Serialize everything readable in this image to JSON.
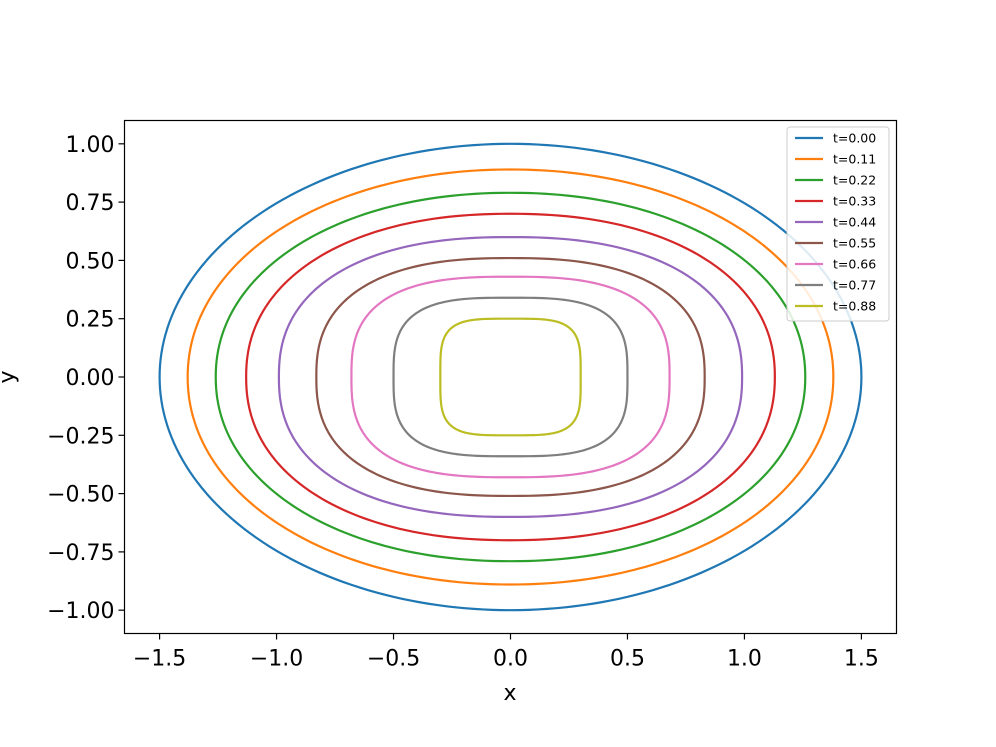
{
  "chart_data": {
    "type": "line",
    "title": "",
    "xlabel": "x",
    "ylabel": "y",
    "xlim": [
      -1.65,
      1.65
    ],
    "ylim": [
      -1.1,
      1.1
    ],
    "xticks": [
      -1.5,
      -1.0,
      -0.5,
      0.0,
      0.5,
      1.0,
      1.5
    ],
    "xtick_labels": [
      "−1.5",
      "−1.0",
      "−0.5",
      "0.0",
      "0.5",
      "1.0",
      "1.5"
    ],
    "yticks": [
      1.0,
      0.75,
      0.5,
      0.25,
      0.0,
      -0.25,
      -0.5,
      -0.75,
      -1.0
    ],
    "ytick_labels": [
      "1.00",
      "0.75",
      "0.50",
      "0.25",
      "0.00",
      "−0.25",
      "−0.50",
      "−0.75",
      "−1.00"
    ],
    "grid": false,
    "legend_position": "top-right",
    "series": [
      {
        "name": "t=0.00",
        "color": "#1f77b4",
        "a": 1.5,
        "b": 1.0,
        "exponent": 2.0
      },
      {
        "name": "t=0.11",
        "color": "#ff7f0e",
        "a": 1.38,
        "b": 0.89,
        "exponent": 2.05
      },
      {
        "name": "t=0.22",
        "color": "#2ca02c",
        "a": 1.26,
        "b": 0.79,
        "exponent": 2.1
      },
      {
        "name": "t=0.33",
        "color": "#d62728",
        "a": 1.13,
        "b": 0.7,
        "exponent": 2.2
      },
      {
        "name": "t=0.44",
        "color": "#9467bd",
        "a": 0.99,
        "b": 0.6,
        "exponent": 2.35
      },
      {
        "name": "t=0.55",
        "color": "#8c564b",
        "a": 0.83,
        "b": 0.51,
        "exponent": 2.5
      },
      {
        "name": "t=0.66",
        "color": "#e377c2",
        "a": 0.68,
        "b": 0.43,
        "exponent": 2.8
      },
      {
        "name": "t=0.77",
        "color": "#7f7f7f",
        "a": 0.5,
        "b": 0.34,
        "exponent": 3.2
      },
      {
        "name": "t=0.88",
        "color": "#bcbd22",
        "a": 0.3,
        "b": 0.25,
        "exponent": 4.0
      }
    ]
  }
}
